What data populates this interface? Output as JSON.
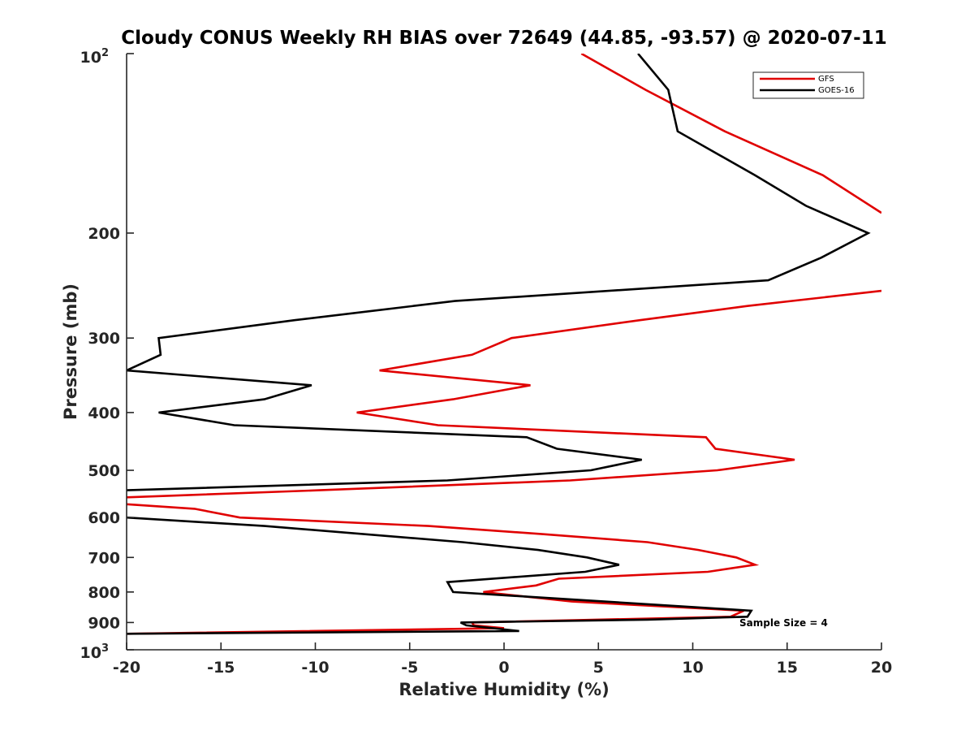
{
  "chart_data": {
    "type": "line",
    "title": "Cloudy CONUS Weekly RH BIAS over 72649 (44.85, -93.57) @ 2020-07-11",
    "xlabel": "Relative Humidity (%)",
    "ylabel": "Pressure (mb)",
    "xlim": [
      -20,
      20
    ],
    "ylim": [
      100,
      1000
    ],
    "y_scale": "log",
    "y_reversed": true,
    "x_ticks": [
      -20,
      -15,
      -10,
      -5,
      0,
      5,
      10,
      15,
      20
    ],
    "x_tick_labels": [
      "-20",
      "-15",
      "-10",
      "-5",
      "0",
      "5",
      "10",
      "15",
      "20"
    ],
    "y_ticks": [
      200,
      300,
      400,
      500,
      600,
      700,
      800,
      900
    ],
    "y_tick_labels": [
      "200",
      "300",
      "400",
      "500",
      "600",
      "700",
      "800",
      "900"
    ],
    "y_end_labels": {
      "top_base": "10",
      "top_exp": "2",
      "bottom_base": "10",
      "bottom_exp": "3"
    },
    "legend_position": "top-right",
    "annotation": "Sample Size = 4",
    "series": [
      {
        "name": "GFS",
        "color": "#e00000",
        "points": [
          [
            4.1,
            100
          ],
          [
            7.5,
            115
          ],
          [
            11.7,
            135
          ],
          [
            16.9,
            160
          ],
          [
            20.0,
            185
          ],
          [
            null,
            null
          ],
          [
            20.0,
            250
          ],
          [
            12.9,
            265
          ],
          [
            7.2,
            280
          ],
          [
            0.4,
            300
          ],
          [
            -1.7,
            320
          ],
          [
            -6.6,
            340
          ],
          [
            1.4,
            360
          ],
          [
            -2.7,
            380
          ],
          [
            -7.8,
            400
          ],
          [
            -3.5,
            420
          ],
          [
            10.7,
            440
          ],
          [
            11.2,
            460
          ],
          [
            15.4,
            480
          ],
          [
            11.3,
            500
          ],
          [
            3.5,
            520
          ],
          [
            -9.8,
            540
          ],
          [
            -20.0,
            555
          ],
          [
            null,
            null
          ],
          [
            -20.0,
            570
          ],
          [
            -16.4,
            580
          ],
          [
            -14.0,
            600
          ],
          [
            -4.0,
            620
          ],
          [
            2.1,
            640
          ],
          [
            7.6,
            660
          ],
          [
            10.3,
            680
          ],
          [
            12.3,
            700
          ],
          [
            13.3,
            720
          ],
          [
            10.8,
            740
          ],
          [
            2.9,
            760
          ],
          [
            1.7,
            780
          ],
          [
            -1.1,
            800
          ],
          [
            3.6,
            830
          ],
          [
            12.7,
            860
          ],
          [
            12.0,
            880
          ],
          [
            -1.7,
            900
          ],
          [
            -1.6,
            910
          ],
          [
            0.0,
            920
          ],
          [
            -20.0,
            940
          ]
        ]
      },
      {
        "name": "GOES-16",
        "color": "#000000",
        "points": [
          [
            7.1,
            100
          ],
          [
            8.7,
            115
          ],
          [
            9.2,
            135
          ],
          [
            13.3,
            160
          ],
          [
            16.0,
            180
          ],
          [
            19.3,
            200
          ],
          [
            16.8,
            220
          ],
          [
            14.0,
            240
          ],
          [
            -2.6,
            260
          ],
          [
            -11.1,
            280
          ],
          [
            -18.3,
            300
          ],
          [
            -18.2,
            320
          ],
          [
            -20.0,
            340
          ],
          [
            -10.2,
            360
          ],
          [
            -12.7,
            380
          ],
          [
            -18.3,
            400
          ],
          [
            -14.3,
            420
          ],
          [
            1.2,
            440
          ],
          [
            2.8,
            460
          ],
          [
            7.3,
            480
          ],
          [
            4.6,
            500
          ],
          [
            -3.0,
            520
          ],
          [
            -20.0,
            540
          ],
          [
            null,
            null
          ],
          [
            -20.0,
            600
          ],
          [
            -12.7,
            620
          ],
          [
            -2.2,
            660
          ],
          [
            1.8,
            680
          ],
          [
            4.4,
            700
          ],
          [
            6.1,
            720
          ],
          [
            4.3,
            740
          ],
          [
            -3.0,
            770
          ],
          [
            -2.7,
            800
          ],
          [
            13.1,
            860
          ],
          [
            12.9,
            880
          ],
          [
            7.6,
            890
          ],
          [
            -2.3,
            900
          ],
          [
            -2.0,
            910
          ],
          [
            0.8,
            930
          ],
          [
            -20.0,
            940
          ]
        ]
      }
    ]
  }
}
